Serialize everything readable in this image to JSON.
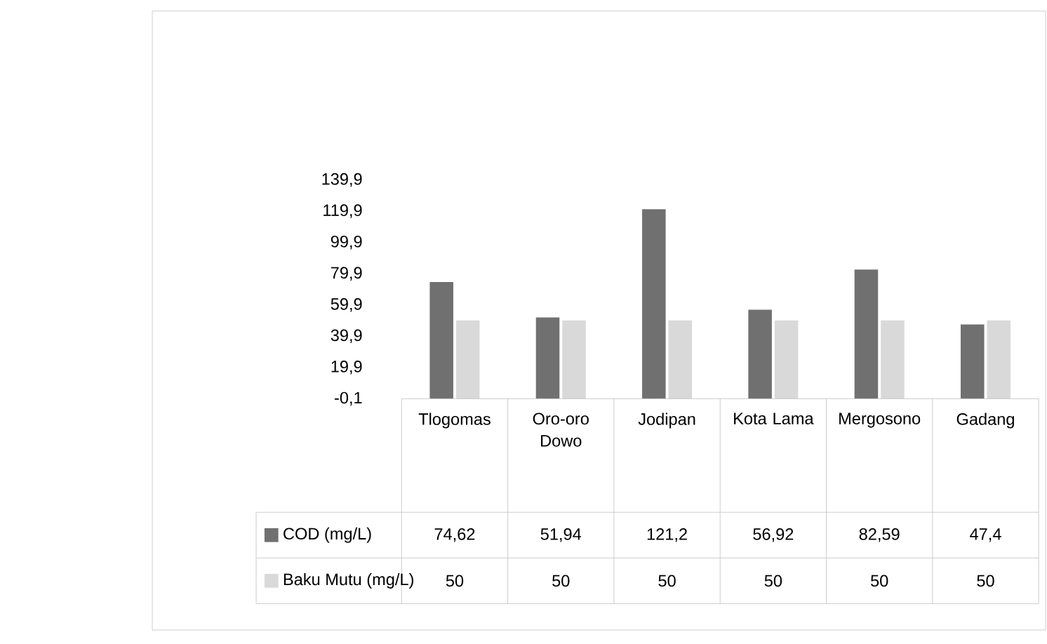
{
  "chart_data": {
    "type": "bar",
    "categories": [
      "Tlogomas",
      "Oro-oro Dowo",
      "Jodipan",
      "Kota Lama",
      "Mergosono",
      "Gadang"
    ],
    "series": [
      {
        "name": "COD (mg/L)",
        "color": "#707070",
        "values": [
          74.62,
          51.94,
          121.2,
          56.92,
          82.59,
          47.4
        ],
        "value_labels": [
          "74,62",
          "51,94",
          "121,2",
          "56,92",
          "82,59",
          "47,4"
        ]
      },
      {
        "name": "Baku Mutu (mg/L)",
        "color": "#d9d9d9",
        "values": [
          50,
          50,
          50,
          50,
          50,
          50
        ],
        "value_labels": [
          "50",
          "50",
          "50",
          "50",
          "50",
          "50"
        ]
      }
    ],
    "ylim": [
      -0.1,
      139.9
    ],
    "yticks": [
      {
        "value": -0.1,
        "label": "-0,1"
      },
      {
        "value": 19.9,
        "label": "19,9"
      },
      {
        "value": 39.9,
        "label": "39,9"
      },
      {
        "value": 59.9,
        "label": "59,9"
      },
      {
        "value": 79.9,
        "label": "79,9"
      },
      {
        "value": 99.9,
        "label": "99,9"
      },
      {
        "value": 119.9,
        "label": "119,9"
      },
      {
        "value": 139.9,
        "label": "139,9"
      }
    ],
    "grid": false,
    "legend": "bottom"
  }
}
